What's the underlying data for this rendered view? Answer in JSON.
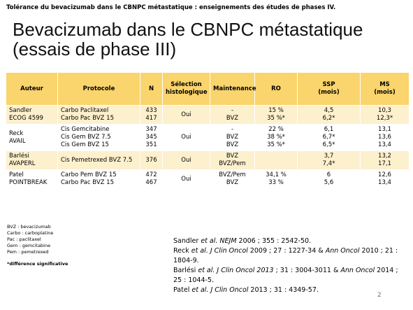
{
  "header": "Tolérance du bevacizumab dans le CBNPC métastatique : enseignements des études de phases IV.",
  "title": [
    "Bevacizumab dans le CBNPC métastatique",
    "(essais de phase III)"
  ],
  "table": {
    "columns": [
      [
        "Auteur"
      ],
      [
        "Protocole"
      ],
      [
        "N"
      ],
      [
        "Sélection",
        "histologique"
      ],
      [
        "Maintenance"
      ],
      [
        "RO"
      ],
      [
        "SSP",
        "(mois)"
      ],
      [
        "MS",
        "(mois)"
      ]
    ],
    "rows": [
      [
        [
          "Sandler",
          "ECOG 4599"
        ],
        [
          "Carbo Paclitaxel",
          "Carbo Pac BVZ 15"
        ],
        [
          "433",
          "417"
        ],
        [
          "Oui"
        ],
        [
          "-",
          "BVZ"
        ],
        [
          "15 %",
          "35 %*"
        ],
        [
          "4,5",
          "6,2*"
        ],
        [
          "10,3",
          "12,3*"
        ]
      ],
      [
        [
          "Reck",
          "AVAIL"
        ],
        [
          "Cis Gemcitabine",
          "Cis Gem BVZ 7.5",
          "Cis Gem BVZ 15"
        ],
        [
          "347",
          "345",
          "351"
        ],
        [
          "Oui"
        ],
        [
          "-",
          "BVZ",
          "BVZ"
        ],
        [
          "22 %",
          "38 %*",
          "35 %*"
        ],
        [
          "6,1",
          "6,7*",
          "6,5*"
        ],
        [
          "13,1",
          "13,6",
          "13,4"
        ]
      ],
      [
        [
          "Barlési",
          "AVAPERL"
        ],
        [
          "Cis Pemetrexed BVZ 7.5"
        ],
        [
          "376"
        ],
        [
          "Oui"
        ],
        [
          "BVZ",
          "BVZ/Pem"
        ],
        [],
        [
          "3,7",
          "7,4*"
        ],
        [
          "13,2",
          "17,1"
        ]
      ],
      [
        [
          "Patel",
          "POINTBREAK"
        ],
        [
          "Carbo Pem BVZ 15",
          "Carbo Pac BVZ 15"
        ],
        [
          "472",
          "467"
        ],
        [
          "Oui"
        ],
        [
          "BVZ/Pem",
          "BVZ"
        ],
        [
          "34,1 %",
          "33 %"
        ],
        [
          "6",
          "5,6"
        ],
        [
          "12,6",
          "13,4"
        ]
      ]
    ]
  },
  "footnotes": [
    "BVZ : bevacizumab",
    "Carbo : carboplatine",
    "Pac : paclitaxel",
    "Gem : gemcitabine",
    "Pem : pemetrexed"
  ],
  "significance_note": "*différence significative",
  "references": [
    [
      "Sandler ",
      "et al. NEJM",
      " 2006 ; 355 : 2542-50."
    ],
    [
      "Reck ",
      "et al. J Clin Oncol",
      " 2009 ; 27 : 1227-34 & ",
      "Ann Oncol",
      " 2010 ; 21 : 1804-9."
    ],
    [
      "Barlési ",
      "et al. J Clin Oncol 2013",
      " ; 31 : 3004-3011 & ",
      "Ann Oncol",
      " 2014 ; 25 : 1044-5."
    ],
    [
      "Patel ",
      "et al. J Clin Oncol",
      " 2013 ; 31 : 4349-57."
    ]
  ],
  "page_number": "2"
}
